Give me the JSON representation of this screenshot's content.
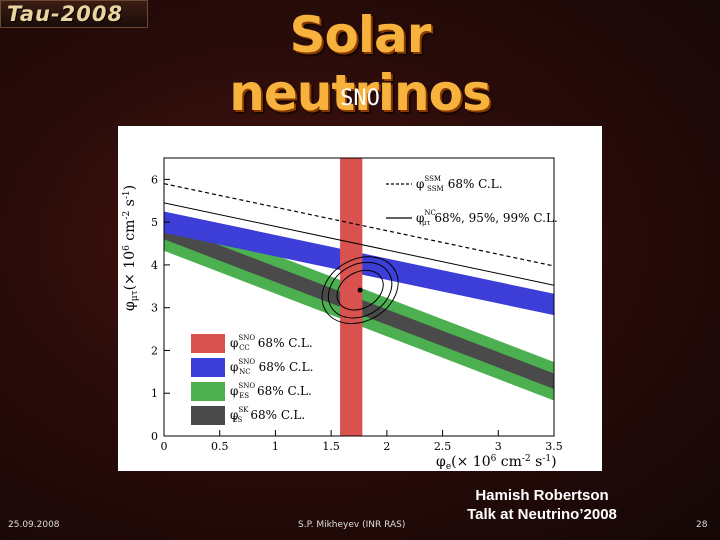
{
  "logo": "Tau-2008",
  "title": "Solar neutrinos",
  "subtitle": "SNO",
  "footer": {
    "date": "25.09.2008",
    "author": "S.P. Mikheyev (INR RAS)",
    "page": "28"
  },
  "credit": {
    "line1": "Hamish Robertson",
    "line2": "Talk at Neutrino’2008"
  },
  "chart_data": {
    "type": "scatter",
    "xlim": [
      0,
      3.5
    ],
    "ylim": [
      0,
      6.5
    ],
    "xticks": [
      "0",
      "0.5",
      "1",
      "1.5",
      "2",
      "2.5",
      "3",
      "3.5"
    ],
    "yticks": [
      "0",
      "1",
      "2",
      "3",
      "4",
      "5",
      "6"
    ],
    "xlabel": {
      "phi": "φ",
      "sub": "e",
      "rest": "(× 10",
      "exp": "6",
      "unit": " cm",
      "exp2": "-2",
      "unit2": " s",
      "exp3": "-1",
      "close": ")"
    },
    "ylabel": {
      "phi": "φ",
      "sub": "μτ",
      "rest": "(× 10",
      "exp": "6",
      "unit": " cm",
      "exp2": "-2",
      "unit2": " s",
      "exp3": "-1",
      "close": ")"
    },
    "bands": [
      {
        "name": "CC",
        "kind": "vertical",
        "x_center": 1.68,
        "half_width": 0.1,
        "color": "#d9524f"
      },
      {
        "name": "ES",
        "kind": "slope",
        "intercept": 4.78,
        "slope": -1,
        "half_width": 0.45,
        "color": "#4caf50"
      },
      {
        "name": "SK",
        "kind": "slope",
        "intercept": 4.78,
        "slope": -1,
        "half_width": 0.18,
        "color": "#4a4a4a"
      },
      {
        "name": "NC",
        "kind": "slope",
        "intercept": 4.9,
        "slope": -1,
        "half_width": 0.32,
        "color": "#3a3ad6",
        "note": "NC band in plot is sloped shallower"
      }
    ],
    "nc_band": {
      "intercept": 5.0,
      "slope": -0.55,
      "half_height": 0.25,
      "color": "#3d3dd8"
    },
    "ssm_line": {
      "intercept": 5.9,
      "slope": -0.55,
      "style": "dashed",
      "legend": "68% C.L."
    },
    "nc_lines": {
      "intercept": 5.45,
      "slope": -0.55,
      "legend": "68%, 95%, 99% C.L."
    },
    "best_fit": {
      "x": 1.76,
      "y": 3.41
    },
    "contours": [
      {
        "rx": 0.22,
        "ry": 0.42
      },
      {
        "rx": 0.3,
        "ry": 0.6
      },
      {
        "rx": 0.36,
        "ry": 0.72
      }
    ],
    "legend_top": [
      {
        "symbol": "φ",
        "sup": "SSM",
        "sub": "SSM",
        "label": "68% C.L.",
        "style": "dashed"
      },
      {
        "symbol": "φ",
        "sup": "NC",
        "sub": "μτ",
        "label": "68%, 95%, 99% C.L.",
        "style": "solid"
      }
    ],
    "legend_bottom": [
      {
        "symbol": "φ",
        "sup": "SNO",
        "sub": "CC",
        "label": "68% C.L.",
        "color": "#d9524f"
      },
      {
        "symbol": "φ",
        "sup": "SNO",
        "sub": "NC",
        "label": "68% C.L.",
        "color": "#3d3dd8"
      },
      {
        "symbol": "φ",
        "sup": "SNO",
        "sub": "ES",
        "label": "68% C.L.",
        "color": "#4caf50"
      },
      {
        "symbol": "φ",
        "sup": "SK",
        "sub": "ES",
        "label": "68% C.L.",
        "color": "#4a4a4a"
      }
    ]
  }
}
